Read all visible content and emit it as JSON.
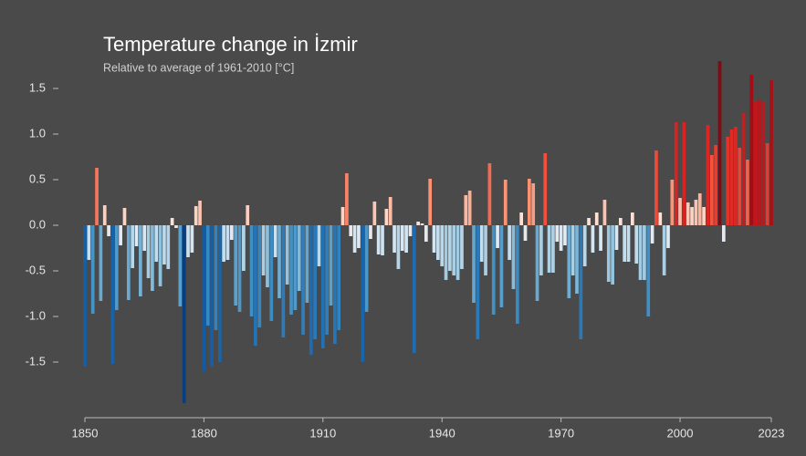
{
  "chart_data": {
    "type": "bar",
    "title": "Temperature change in İzmir",
    "subtitle": "Relative to average of 1961-2010  [°C]",
    "x": [
      1850,
      1851,
      1852,
      1853,
      1854,
      1855,
      1856,
      1857,
      1858,
      1859,
      1860,
      1861,
      1862,
      1863,
      1864,
      1865,
      1866,
      1867,
      1868,
      1869,
      1870,
      1871,
      1872,
      1873,
      1874,
      1875,
      1876,
      1877,
      1878,
      1879,
      1880,
      1881,
      1882,
      1883,
      1884,
      1885,
      1886,
      1887,
      1888,
      1889,
      1890,
      1891,
      1892,
      1893,
      1894,
      1895,
      1896,
      1897,
      1898,
      1899,
      1900,
      1901,
      1902,
      1903,
      1904,
      1905,
      1906,
      1907,
      1908,
      1909,
      1910,
      1911,
      1912,
      1913,
      1914,
      1915,
      1916,
      1917,
      1918,
      1919,
      1920,
      1921,
      1922,
      1923,
      1924,
      1925,
      1926,
      1927,
      1928,
      1929,
      1930,
      1931,
      1932,
      1933,
      1934,
      1935,
      1936,
      1937,
      1938,
      1939,
      1940,
      1941,
      1942,
      1943,
      1944,
      1945,
      1946,
      1947,
      1948,
      1949,
      1950,
      1951,
      1952,
      1953,
      1954,
      1955,
      1956,
      1957,
      1958,
      1959,
      1960,
      1961,
      1962,
      1963,
      1964,
      1965,
      1966,
      1967,
      1968,
      1969,
      1970,
      1971,
      1972,
      1973,
      1974,
      1975,
      1976,
      1977,
      1978,
      1979,
      1980,
      1981,
      1982,
      1983,
      1984,
      1985,
      1986,
      1987,
      1988,
      1989,
      1990,
      1991,
      1992,
      1993,
      1994,
      1995,
      1996,
      1997,
      1998,
      1999,
      2000,
      2001,
      2002,
      2003,
      2004,
      2005,
      2006,
      2007,
      2008,
      2009,
      2010,
      2011,
      2012,
      2013,
      2014,
      2015,
      2016,
      2017,
      2018,
      2019,
      2020,
      2021,
      2022,
      2023
    ],
    "values": [
      -1.55,
      -0.38,
      -0.97,
      0.63,
      -0.83,
      0.22,
      -0.12,
      -1.52,
      -0.93,
      -0.22,
      0.19,
      -0.82,
      -0.47,
      -0.23,
      -0.78,
      -0.28,
      -0.58,
      -0.72,
      -0.4,
      -0.67,
      -0.43,
      -0.48,
      0.08,
      -0.03,
      -0.89,
      -1.95,
      -0.35,
      -0.3,
      0.21,
      0.27,
      -1.6,
      -1.1,
      -1.55,
      -1.15,
      -1.5,
      -0.4,
      -0.38,
      -0.16,
      -0.88,
      -0.95,
      -0.5,
      0.22,
      -1.0,
      -1.32,
      -1.12,
      -0.55,
      -0.68,
      -1.05,
      -0.35,
      -0.8,
      -1.23,
      -0.65,
      -0.98,
      -0.93,
      -0.72,
      -1.2,
      -0.85,
      -1.42,
      -1.25,
      -0.45,
      -1.35,
      -1.2,
      -0.88,
      -1.3,
      -1.15,
      0.2,
      0.57,
      -0.12,
      -0.3,
      -0.25,
      -1.5,
      -0.95,
      -0.15,
      0.26,
      -0.32,
      -0.33,
      0.18,
      0.31,
      -0.3,
      -0.48,
      -0.28,
      -0.3,
      -0.12,
      -1.4,
      0.04,
      0.02,
      -0.18,
      0.51,
      -0.3,
      -0.38,
      -0.45,
      -0.6,
      -0.5,
      -0.55,
      -0.6,
      -0.48,
      0.33,
      0.38,
      -0.85,
      -1.25,
      -0.4,
      -0.55,
      0.68,
      -0.98,
      -0.25,
      -0.9,
      0.5,
      -0.38,
      -0.7,
      -1.08,
      0.14,
      -0.17,
      0.51,
      0.46,
      -0.83,
      -0.55,
      0.79,
      -0.52,
      -0.52,
      -0.18,
      -0.28,
      -0.22,
      -0.8,
      -0.55,
      -0.75,
      -1.25,
      -0.45,
      0.08,
      -0.3,
      0.14,
      -0.28,
      0.28,
      -0.62,
      -0.65,
      -0.27,
      0.08,
      -0.4,
      -0.4,
      0.14,
      -0.42,
      -0.6,
      -0.6,
      -1.0,
      -0.2,
      0.82,
      0.14,
      -0.55,
      -0.25,
      0.5,
      1.13,
      0.3,
      1.13,
      0.25,
      0.2,
      0.28,
      0.35,
      0.2,
      1.1,
      0.77,
      0.88,
      1.8,
      -0.18,
      0.97,
      1.05,
      1.08,
      0.85,
      1.23,
      0.72,
      1.65,
      1.35,
      1.38,
      1.35,
      0.9,
      1.59
    ],
    "colormap": [
      "#08306b",
      "#08519c",
      "#2171b5",
      "#4292c6",
      "#9ecae1",
      "#deebf7",
      "#fee0d2",
      "#fc9272",
      "#ef3b2c",
      "#cb181d",
      "#a50f15",
      "#67000d"
    ],
    "xlim": [
      1850,
      2023
    ],
    "xticks": [
      1850,
      1880,
      1910,
      1940,
      1970,
      2000,
      2023
    ],
    "ylim": [
      -2.1,
      2.0
    ],
    "yticks": [
      -1.5,
      {
        "value": -1.0,
        "label": "-1.0"
      },
      -0.5,
      {
        "value": 0,
        "label": "0.0"
      },
      0.5,
      {
        "value": 1.0,
        "label": "1.0"
      },
      1.5
    ],
    "grid": false
  }
}
